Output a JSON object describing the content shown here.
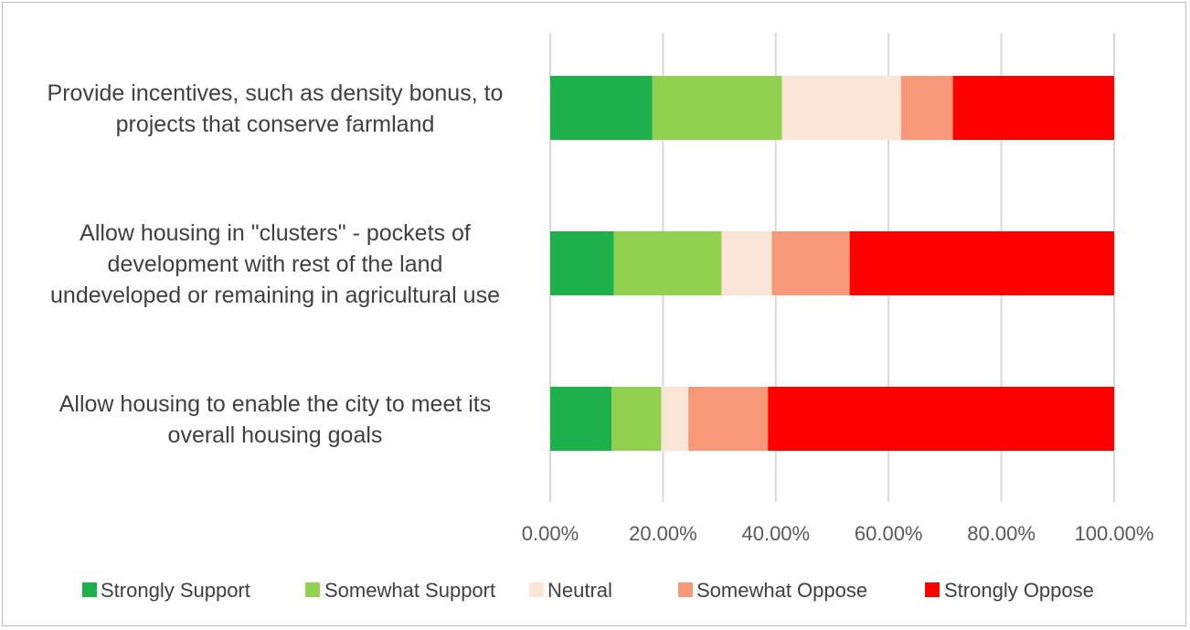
{
  "chart_data": {
    "type": "bar",
    "orientation": "horizontal",
    "stacked": true,
    "percent": true,
    "categories": [
      [
        "Provide incentives, such as density bonus, to",
        "projects that conserve farmland"
      ],
      [
        "Allow housing in \"clusters\" - pockets of",
        "development with rest of the land",
        "undeveloped or remaining in agricultural use"
      ],
      [
        "Allow housing to enable the city to meet its",
        "overall housing goals"
      ]
    ],
    "series": [
      {
        "name": "Strongly Support",
        "color": "#1db04b",
        "values": [
          18.1,
          11.3,
          10.9
        ]
      },
      {
        "name": "Somewhat Support",
        "color": "#92d050",
        "values": [
          23.0,
          19.1,
          8.8
        ]
      },
      {
        "name": "Neutral",
        "color": "#fbe5d6",
        "values": [
          21.1,
          8.9,
          4.8
        ]
      },
      {
        "name": "Somewhat Oppose",
        "color": "#f79878",
        "values": [
          9.2,
          13.8,
          14.1
        ]
      },
      {
        "name": "Strongly Oppose",
        "color": "#ff0000",
        "values": [
          28.6,
          46.9,
          61.4
        ]
      }
    ],
    "xticks": [
      "0.00%",
      "20.00%",
      "40.00%",
      "60.00%",
      "80.00%",
      "100.00%"
    ],
    "xlim": [
      0,
      100
    ],
    "grid": true,
    "legend_position": "bottom"
  }
}
